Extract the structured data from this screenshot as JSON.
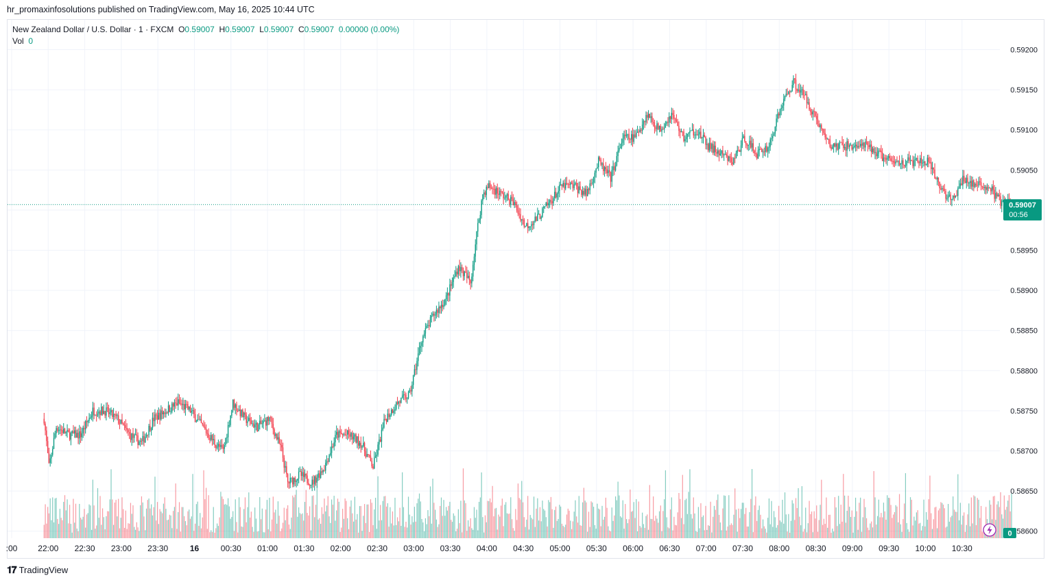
{
  "publisher_line": "hr_promaxinfosolutions published on TradingView.com, May 16, 2025 10:44 UTC",
  "legend": {
    "symbol": "New Zealand Dollar / U.S. Dollar · 1 · FXCM",
    "o_label": "O",
    "o": "0.59007",
    "h_label": "H",
    "h": "0.59007",
    "l_label": "L",
    "l": "0.59007",
    "c_label": "C",
    "c": "0.59007",
    "change": "0.00000 (0.00%)",
    "vol_label": "Vol",
    "vol": "0"
  },
  "price_badge": {
    "price": "0.59007",
    "countdown": "00:56"
  },
  "vol_badge": "0",
  "footer_logo": "TradingView",
  "colors": {
    "up": "#089981",
    "down": "#f23645",
    "grid": "#f0f3fa",
    "axis_text": "#131722"
  },
  "chart_data": {
    "type": "candlestick",
    "ylim": [
      0.5859,
      0.5922
    ],
    "y_ticks": [
      "0.59200",
      "0.59150",
      "0.59100",
      "0.59050",
      "0.59000",
      "0.58950",
      "0.58900",
      "0.58850",
      "0.58800",
      "0.58750",
      "0.58700",
      "0.58650",
      "0.58600"
    ],
    "x_ticks": [
      ":00",
      "22:00",
      "22:30",
      "23:00",
      "23:30",
      "16",
      "00:30",
      "01:00",
      "01:30",
      "02:00",
      "02:30",
      "03:00",
      "03:30",
      "04:00",
      "04:30",
      "05:00",
      "05:30",
      "06:00",
      "06:30",
      "07:00",
      "07:30",
      "08:00",
      "08:30",
      "09:00",
      "09:30",
      "10:00",
      "10:30"
    ],
    "last_price": 0.59007,
    "close_path": [
      [
        "21:30",
        0.5874
      ],
      [
        "21:34",
        0.5868
      ],
      [
        "21:40",
        0.5873
      ],
      [
        "21:50",
        0.5872
      ],
      [
        "22:00",
        0.5872
      ],
      [
        "22:10",
        0.5875
      ],
      [
        "22:20",
        0.5875
      ],
      [
        "22:30",
        0.5874
      ],
      [
        "22:40",
        0.5872
      ],
      [
        "22:50",
        0.5871
      ],
      [
        "23:00",
        0.5874
      ],
      [
        "23:10",
        0.5875
      ],
      [
        "23:20",
        0.5876
      ],
      [
        "23:30",
        0.5875
      ],
      [
        "23:40",
        0.5873
      ],
      [
        "23:50",
        0.5871
      ],
      [
        "23:57",
        0.587
      ],
      [
        "00:05",
        0.5876
      ],
      [
        "00:15",
        0.5874
      ],
      [
        "00:25",
        0.5873
      ],
      [
        "00:35",
        0.5874
      ],
      [
        "00:45",
        0.587
      ],
      [
        "00:50",
        0.5866
      ],
      [
        "01:00",
        0.5867
      ],
      [
        "01:10",
        0.5866
      ],
      [
        "01:20",
        0.5868
      ],
      [
        "01:30",
        0.5872
      ],
      [
        "01:40",
        0.5872
      ],
      [
        "01:50",
        0.5871
      ],
      [
        "02:00",
        0.5868
      ],
      [
        "02:10",
        0.5874
      ],
      [
        "02:20",
        0.5876
      ],
      [
        "02:30",
        0.5877
      ],
      [
        "02:40",
        0.5884
      ],
      [
        "02:50",
        0.5887
      ],
      [
        "03:00",
        0.5889
      ],
      [
        "03:10",
        0.5893
      ],
      [
        "03:20",
        0.5891
      ],
      [
        "03:25",
        0.5897
      ],
      [
        "03:30",
        0.5902
      ],
      [
        "03:35",
        0.5903
      ],
      [
        "03:45",
        0.5902
      ],
      [
        "03:55",
        0.5901
      ],
      [
        "04:05",
        0.5898
      ],
      [
        "04:15",
        0.5899
      ],
      [
        "04:25",
        0.5901
      ],
      [
        "04:35",
        0.5903
      ],
      [
        "04:45",
        0.5903
      ],
      [
        "04:55",
        0.5902
      ],
      [
        "05:05",
        0.5906
      ],
      [
        "05:15",
        0.5904
      ],
      [
        "05:25",
        0.5909
      ],
      [
        "05:35",
        0.5909
      ],
      [
        "05:45",
        0.5912
      ],
      [
        "05:55",
        0.591
      ],
      [
        "06:05",
        0.5912
      ],
      [
        "06:15",
        0.5909
      ],
      [
        "06:25",
        0.591
      ],
      [
        "06:35",
        0.5908
      ],
      [
        "06:45",
        0.5907
      ],
      [
        "06:55",
        0.5906
      ],
      [
        "07:05",
        0.5909
      ],
      [
        "07:15",
        0.5907
      ],
      [
        "07:25",
        0.5908
      ],
      [
        "07:35",
        0.5913
      ],
      [
        "07:45",
        0.5916
      ],
      [
        "07:55",
        0.5914
      ],
      [
        "08:05",
        0.5911
      ],
      [
        "08:15",
        0.5908
      ],
      [
        "08:25",
        0.5908
      ],
      [
        "08:35",
        0.5908
      ],
      [
        "08:45",
        0.5908
      ],
      [
        "08:55",
        0.5907
      ],
      [
        "09:05",
        0.5906
      ],
      [
        "09:15",
        0.5906
      ],
      [
        "09:25",
        0.5906
      ],
      [
        "09:35",
        0.5906
      ],
      [
        "09:45",
        0.5903
      ],
      [
        "09:55",
        0.5901
      ],
      [
        "10:05",
        0.5904
      ],
      [
        "10:15",
        0.5903
      ],
      [
        "10:25",
        0.5903
      ],
      [
        "10:35",
        0.5901
      ],
      [
        "10:44",
        0.59007
      ]
    ]
  }
}
